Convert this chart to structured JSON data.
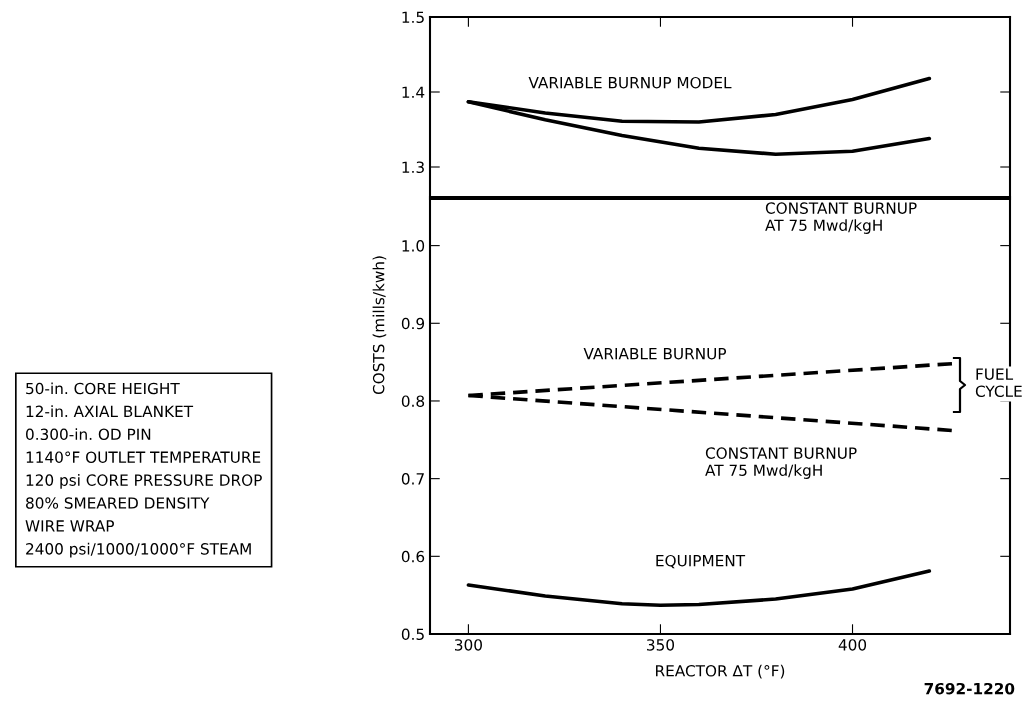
{
  "chart_data": [
    {
      "type": "line",
      "xlim": [
        290,
        441
      ],
      "xticks": [
        300,
        350,
        400
      ],
      "ylim": [
        1.26,
        1.5
      ],
      "yticks": [
        1.3,
        1.4,
        1.5
      ],
      "tick_labels": "y",
      "grid": false,
      "legend": false,
      "line_style": "solid",
      "series": [
        {
          "color": "#000000",
          "x": [
            300,
            320,
            340,
            360,
            380,
            400,
            420
          ],
          "values": [
            1.387,
            1.372,
            1.361,
            1.36,
            1.37,
            1.39,
            1.418
          ]
        },
        {
          "color": "#000000",
          "x": [
            300,
            320,
            340,
            360,
            380,
            400,
            420
          ],
          "values": [
            1.387,
            1.363,
            1.342,
            1.325,
            1.317,
            1.321,
            1.338
          ]
        }
      ],
      "annotations": [
        "VARIABLE BURNUP MODEL",
        "CONSTANT BURNUP\nAT 75 Mwd/kgH"
      ]
    },
    {
      "type": "line",
      "xlim": [
        290,
        441
      ],
      "xticks": [
        300,
        350,
        400
      ],
      "ylim": [
        0.5,
        1.06
      ],
      "yticks": [
        0.5,
        0.6,
        0.7,
        0.8,
        0.9,
        {
          "value": 1.0,
          "label": "1.0"
        }
      ],
      "xlabel": "REACTOR ΔT (°F)",
      "ylabel": "COSTS (mills/kwh)",
      "grid": false,
      "legend": false,
      "series": [
        {
          "color": "#000000",
          "line_style": "dashed",
          "x": [
            300,
            426
          ],
          "values": [
            0.807,
            0.848
          ]
        },
        {
          "color": "#000000",
          "line_style": "dashed",
          "x": [
            300,
            426
          ],
          "values": [
            0.807,
            0.762
          ]
        },
        {
          "color": "#000000",
          "line_style": "solid",
          "x": [
            300,
            320,
            340,
            350,
            360,
            380,
            400,
            420
          ],
          "values": [
            0.563,
            0.549,
            0.539,
            0.537,
            0.538,
            0.545,
            0.558,
            0.581
          ]
        }
      ],
      "annotations": [
        "VARIABLE BURNUP",
        "CONSTANT BURNUP\nAT 75 Mwd/kgH",
        "EQUIPMENT",
        "FUEL\nCYCLE",
        "50-in. CORE HEIGHT\n12-in. AXIAL BLANKET\n0.300-in. OD PIN\n1140°F OUTLET TEMPERATURE\n120 psi CORE PRESSURE DROP\n80% SMEARED DENSITY\nWIRE WRAP\n2400 psi/1000/1000°F STEAM",
        "7692-1220"
      ]
    }
  ]
}
